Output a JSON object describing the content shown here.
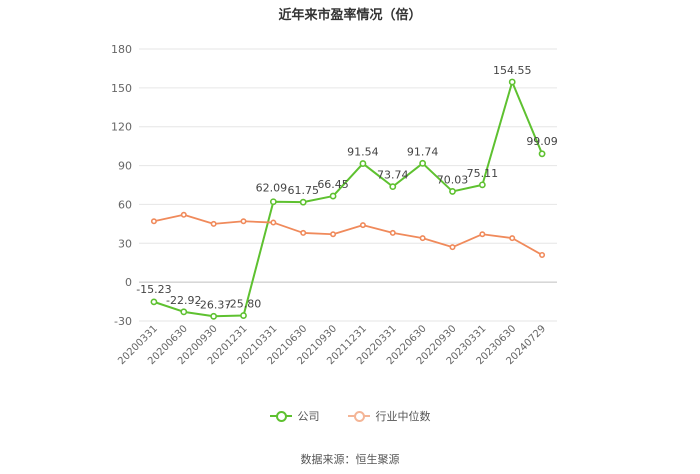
{
  "chart_data": {
    "type": "line",
    "title": "近年来市盈率情况（倍）",
    "categories": [
      "20200331",
      "20200630",
      "20200930",
      "20201231",
      "20210331",
      "20210630",
      "20210930",
      "20211231",
      "20220331",
      "20220630",
      "20220930",
      "20230331",
      "20230630",
      "20240729"
    ],
    "series": [
      {
        "name": "公司",
        "color": "#5ec130",
        "values": [
          -15.23,
          -22.92,
          -26.37,
          -25.8,
          62.09,
          61.75,
          66.45,
          91.54,
          73.74,
          91.74,
          70.03,
          75.11,
          154.55,
          99.09
        ],
        "labels": [
          "-15.23",
          "-22.92",
          "-26.37",
          "-25.80",
          "62.09",
          "61.75",
          "66.45",
          "91.54",
          "73.74",
          "91.74",
          "70.03",
          "75.11",
          "154.55",
          "99.09"
        ]
      },
      {
        "name": "行业中位数",
        "color": "#f08a5b",
        "values": [
          47,
          52,
          45,
          47,
          46,
          38,
          37,
          44,
          38,
          34,
          27,
          37,
          34,
          21
        ]
      }
    ],
    "ylim": [
      -30,
      180
    ],
    "yticks": [
      "-30",
      "0",
      "30",
      "60",
      "90",
      "120",
      "150",
      "180"
    ],
    "grid": true,
    "legend_position": "bottom"
  },
  "source": "数据来源：恒生聚源"
}
